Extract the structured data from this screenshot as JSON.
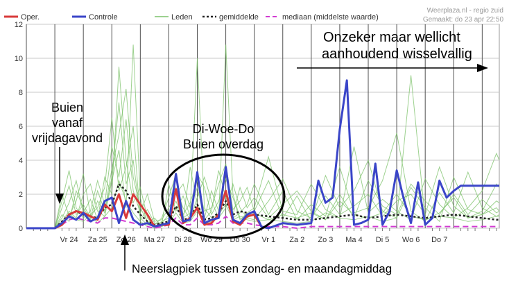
{
  "header": {
    "credit_line1": "Weerplaza.nl - regio zuid",
    "credit_line2": "Gemaakt: do 23 apr 22:50"
  },
  "annotations": {
    "top_right_line1": "Onzeker maar wellicht",
    "top_right_line2": "aanhoudend wisselvallig",
    "left_line1": "Buien",
    "left_line2": "vanaf",
    "left_line3": "vrijdagavond",
    "middle_line1": "Di-Woe-Do",
    "middle_line2": "Buien overdag",
    "bottom": "Neerslagpiek tussen zondag- en maandagmiddag"
  },
  "colors": {
    "oper": "#d83a3a",
    "controle": "#3a45c8",
    "leden": "#7cc26a",
    "gemiddelde": "#222222",
    "mediaan": "#d23ad2",
    "grid": "#c8c8c8",
    "daylines": "#505050"
  },
  "chart_data": {
    "type": "line",
    "title": "",
    "xlabel": "",
    "ylabel": "",
    "ylim": [
      0,
      12
    ],
    "yticks": [
      0,
      2,
      4,
      6,
      8,
      10,
      12
    ],
    "grid": true,
    "legend_position": "top",
    "x_units": "days from start of Vr 24",
    "xlim": [
      -1.0,
      15.6
    ],
    "x_tick_labels": [
      {
        "x": 0.0,
        "label": "Vr 24"
      },
      {
        "x": 1.0,
        "label": "Za 25"
      },
      {
        "x": 2.0,
        "label": "Zo 26"
      },
      {
        "x": 3.0,
        "label": "Ma 27"
      },
      {
        "x": 4.0,
        "label": "Di 28"
      },
      {
        "x": 5.0,
        "label": "Wo 29"
      },
      {
        "x": 6.0,
        "label": "Do 30"
      },
      {
        "x": 7.0,
        "label": "Vr 1"
      },
      {
        "x": 8.0,
        "label": "Za 2"
      },
      {
        "x": 9.0,
        "label": "Zo 3"
      },
      {
        "x": 10.0,
        "label": "Ma 4"
      },
      {
        "x": 11.0,
        "label": "Di 5"
      },
      {
        "x": 12.0,
        "label": "Wo 6"
      },
      {
        "x": 13.0,
        "label": "Do 7"
      }
    ],
    "legend": [
      {
        "key": "oper",
        "label": "Oper."
      },
      {
        "key": "controle",
        "label": "Controle"
      },
      {
        "key": "leden",
        "label": "Leden"
      },
      {
        "key": "gemiddelde",
        "label": "gemiddelde"
      },
      {
        "key": "mediaan",
        "label": "mediaan (middelste waarde)"
      }
    ],
    "series": [
      {
        "key": "oper",
        "name": "Oper.",
        "x": [
          -1.0,
          0.0,
          0.25,
          0.5,
          0.75,
          1.0,
          1.25,
          1.5,
          1.75,
          2.0,
          2.25,
          2.5,
          2.75,
          3.0,
          3.25,
          3.5,
          3.75,
          4.0,
          4.25,
          4.5,
          4.75,
          5.0,
          5.25,
          5.5,
          5.75,
          6.0,
          6.25,
          6.5,
          6.75,
          7.0,
          7.25,
          7.5
        ],
        "y": [
          0.0,
          0.0,
          0.2,
          0.8,
          1.0,
          0.9,
          0.7,
          0.5,
          1.4,
          1.0,
          2.0,
          0.6,
          2.0,
          1.4,
          0.8,
          0.1,
          0.2,
          0.2,
          2.3,
          0.3,
          0.6,
          1.2,
          0.2,
          0.3,
          0.8,
          2.2,
          0.4,
          0.2,
          0.7,
          0.8,
          0.1,
          0.0
        ]
      },
      {
        "key": "controle",
        "name": "Controle",
        "x": [
          -1.0,
          0.0,
          0.25,
          0.5,
          0.75,
          1.0,
          1.25,
          1.5,
          1.75,
          2.0,
          2.25,
          2.5,
          2.75,
          3.0,
          3.25,
          3.5,
          3.75,
          4.0,
          4.25,
          4.5,
          4.75,
          5.0,
          5.25,
          5.5,
          5.75,
          6.0,
          6.25,
          6.5,
          6.75,
          7.0,
          7.25,
          7.5,
          8.0,
          8.5,
          9.0,
          9.25,
          9.5,
          9.75,
          10.0,
          10.25,
          10.5,
          10.75,
          11.0,
          11.25,
          11.5,
          11.75,
          12.0,
          12.25,
          12.5,
          12.75,
          13.0,
          13.25,
          13.5,
          13.75,
          14.0,
          14.25,
          14.5,
          14.75,
          15.0,
          15.25,
          15.5,
          15.6
        ],
        "y": [
          0.0,
          0.0,
          0.3,
          0.7,
          0.5,
          0.9,
          0.4,
          0.6,
          1.6,
          1.8,
          0.3,
          1.6,
          0.5,
          0.2,
          0.3,
          0.1,
          0.2,
          0.3,
          3.2,
          0.4,
          0.5,
          3.3,
          0.3,
          0.5,
          0.6,
          3.6,
          0.5,
          0.3,
          0.8,
          1.0,
          0.1,
          0.0,
          0.3,
          0.2,
          0.3,
          2.8,
          1.5,
          1.8,
          5.8,
          8.7,
          0.2,
          0.3,
          0.5,
          3.8,
          0.2,
          1.0,
          3.4,
          1.7,
          0.3,
          2.7,
          0.2,
          0.6,
          2.8,
          1.8,
          2.2,
          2.5,
          2.5,
          2.5,
          2.5,
          2.5,
          2.5,
          2.5
        ]
      },
      {
        "key": "gemiddelde",
        "name": "gemiddelde",
        "x": [
          -1.0,
          0.0,
          0.25,
          0.5,
          0.75,
          1.0,
          1.25,
          1.5,
          1.75,
          2.0,
          2.25,
          2.5,
          2.75,
          3.0,
          3.25,
          3.5,
          3.75,
          4.0,
          4.25,
          4.5,
          4.75,
          5.0,
          5.25,
          5.5,
          5.75,
          6.0,
          6.25,
          6.5,
          6.75,
          7.0,
          7.5,
          8.0,
          8.5,
          9.0,
          9.5,
          10.0,
          10.5,
          11.0,
          11.5,
          12.0,
          12.5,
          13.0,
          13.5,
          14.0,
          14.5,
          15.0,
          15.5,
          15.6
        ],
        "y": [
          0.0,
          0.0,
          0.4,
          0.8,
          1.0,
          0.8,
          0.7,
          0.6,
          1.2,
          1.4,
          2.6,
          2.2,
          1.3,
          0.8,
          0.4,
          0.2,
          0.3,
          0.4,
          1.3,
          0.5,
          0.6,
          1.4,
          0.5,
          0.6,
          0.9,
          1.6,
          0.8,
          1.0,
          0.9,
          0.8,
          0.7,
          0.6,
          0.5,
          0.5,
          0.6,
          0.7,
          0.8,
          0.6,
          0.7,
          0.8,
          0.7,
          0.6,
          0.7,
          0.8,
          0.7,
          0.6,
          0.5,
          0.5
        ]
      },
      {
        "key": "mediaan",
        "name": "mediaan (middelste waarde)",
        "x": [
          -1.0,
          0.0,
          0.25,
          0.5,
          0.75,
          1.0,
          1.25,
          1.5,
          1.75,
          2.0,
          2.25,
          2.5,
          2.75,
          3.0,
          3.25,
          3.5,
          3.75,
          4.0,
          4.25,
          4.5,
          4.75,
          5.0,
          5.25,
          5.5,
          5.75,
          6.0,
          6.25,
          6.5,
          6.75,
          7.0,
          7.5,
          8.0,
          8.5,
          9.0,
          9.5,
          10.0,
          10.5,
          11.0,
          11.5,
          12.0,
          12.5,
          13.0,
          13.5,
          14.0,
          14.5,
          15.0,
          15.5,
          15.6
        ],
        "y": [
          0.0,
          0.0,
          0.2,
          0.5,
          0.6,
          0.5,
          0.4,
          0.3,
          0.6,
          0.6,
          0.5,
          0.4,
          0.3,
          0.2,
          0.1,
          0.0,
          0.1,
          0.2,
          0.6,
          0.2,
          0.2,
          0.6,
          0.2,
          0.2,
          0.3,
          0.7,
          0.3,
          0.3,
          0.3,
          0.2,
          0.1,
          0.1,
          0.0,
          0.1,
          0.1,
          0.1,
          0.1,
          0.1,
          0.1,
          0.1,
          0.1,
          0.1,
          0.1,
          0.1,
          0.1,
          0.1,
          0.1,
          0.1
        ]
      }
    ],
    "ensemble_members": {
      "name": "Leden",
      "x": [
        -1.0,
        0.0,
        0.25,
        0.5,
        0.75,
        1.0,
        1.25,
        1.5,
        1.75,
        2.0,
        2.25,
        2.5,
        2.75,
        3.0,
        3.25,
        3.5,
        3.75,
        4.0,
        4.25,
        4.5,
        4.75,
        5.0,
        5.25,
        5.5,
        5.75,
        6.0,
        6.25,
        6.5,
        6.75,
        7.0,
        7.5,
        8.0,
        8.5,
        9.0,
        9.5,
        10.0,
        10.5,
        11.0,
        11.5,
        12.0,
        12.5,
        13.0,
        13.5,
        14.0,
        14.5,
        15.0,
        15.5,
        15.6
      ],
      "members": [
        [
          0,
          0,
          1.2,
          2.5,
          0.8,
          1.4,
          0.6,
          2.2,
          1.0,
          3.5,
          5.5,
          8.2,
          3.0,
          1.2,
          0.4,
          0.2,
          0.6,
          1.8,
          3.2,
          0.8,
          1.5,
          2.8,
          1.0,
          1.2,
          2.6,
          3.8,
          1.1,
          1.6,
          2.4,
          1.0,
          2.8,
          0.6,
          1.9,
          0.4,
          3.1,
          1.2,
          2.2,
          4.0,
          1.0,
          0.6,
          2.4,
          1.2,
          0.4,
          3.0,
          1.1,
          0.8,
          1.6,
          1.5
        ],
        [
          0,
          0,
          0.6,
          1.5,
          2.8,
          0.9,
          1.7,
          0.5,
          3.0,
          2.0,
          9.5,
          4.0,
          1.5,
          2.4,
          0.6,
          0.1,
          0.3,
          0.8,
          1.6,
          0.5,
          3.6,
          1.4,
          0.6,
          2.2,
          1.0,
          2.0,
          0.6,
          0.9,
          1.4,
          2.6,
          0.8,
          2.2,
          0.5,
          1.4,
          0.7,
          3.6,
          0.9,
          1.2,
          2.8,
          5.6,
          1.0,
          0.4,
          2.1,
          0.9,
          3.3,
          1.2,
          0.7,
          0.8
        ],
        [
          0,
          0,
          2.0,
          0.7,
          1.6,
          3.2,
          0.8,
          1.2,
          2.4,
          6.5,
          2.2,
          3.6,
          6.0,
          0.5,
          1.1,
          0.3,
          0.2,
          2.6,
          1.0,
          1.9,
          0.7,
          3.2,
          2.4,
          0.8,
          1.6,
          2.9,
          1.8,
          0.5,
          0.9,
          1.2,
          4.2,
          1.0,
          0.8,
          2.6,
          1.1,
          0.6,
          4.8,
          0.9,
          1.7,
          1.0,
          0.5,
          2.9,
          1.4,
          0.6,
          1.2,
          2.2,
          4.4,
          4.0
        ],
        [
          0,
          0,
          0.4,
          1.0,
          0.6,
          2.0,
          2.6,
          1.0,
          0.7,
          2.8,
          4.6,
          1.2,
          10.8,
          1.8,
          0.3,
          0.6,
          0.1,
          0.5,
          2.4,
          1.2,
          0.5,
          1.8,
          3.0,
          1.6,
          0.6,
          1.2,
          2.6,
          1.2,
          0.6,
          0.5,
          1.6,
          2.9,
          1.0,
          0.6,
          1.9,
          0.8,
          1.3,
          2.0,
          0.7,
          1.6,
          2.0,
          0.8,
          3.6,
          1.3,
          0.6,
          1.0,
          2.6,
          2.4
        ],
        [
          0,
          0,
          1.6,
          3.4,
          1.2,
          0.6,
          1.0,
          2.8,
          1.4,
          4.8,
          3.0,
          6.4,
          2.2,
          0.9,
          2.0,
          0.4,
          0.5,
          1.2,
          2.0,
          2.6,
          1.2,
          2.4,
          0.5,
          1.0,
          3.4,
          1.8,
          0.8,
          2.4,
          1.2,
          1.8,
          0.6,
          1.4,
          2.2,
          1.0,
          0.5,
          2.0,
          0.6,
          2.8,
          1.3,
          0.8,
          2.6,
          1.6,
          0.8,
          2.0,
          0.8,
          1.7,
          0.9,
          1.0
        ],
        [
          0,
          0,
          0.8,
          0.4,
          2.2,
          1.2,
          0.5,
          1.6,
          0.9,
          3.0,
          7.4,
          2.6,
          4.0,
          0.6,
          0.2,
          0.1,
          0.4,
          0.6,
          1.2,
          0.6,
          0.9,
          10.0,
          1.2,
          0.6,
          0.8,
          1.4,
          0.5,
          0.7,
          0.6,
          0.9,
          0.5,
          0.8,
          0.6,
          0.9,
          0.5,
          1.6,
          0.8,
          0.6,
          0.9,
          2.0,
          0.7,
          0.5,
          0.9,
          1.8,
          0.6,
          0.8,
          1.2,
          1.0
        ],
        [
          0,
          0,
          0.2,
          0.9,
          0.5,
          0.4,
          0.8,
          0.3,
          0.7,
          1.2,
          2.8,
          1.6,
          0.9,
          0.4,
          0.1,
          0.0,
          0.1,
          0.3,
          0.9,
          0.3,
          0.4,
          1.0,
          0.3,
          0.4,
          0.6,
          10.8,
          2.0,
          0.6,
          0.5,
          0.4,
          0.5,
          0.4,
          0.3,
          0.4,
          0.9,
          0.6,
          0.5,
          0.7,
          0.4,
          0.6,
          9.0,
          0.5,
          0.7,
          0.6,
          0.4,
          0.5,
          0.7,
          0.7
        ]
      ]
    }
  }
}
